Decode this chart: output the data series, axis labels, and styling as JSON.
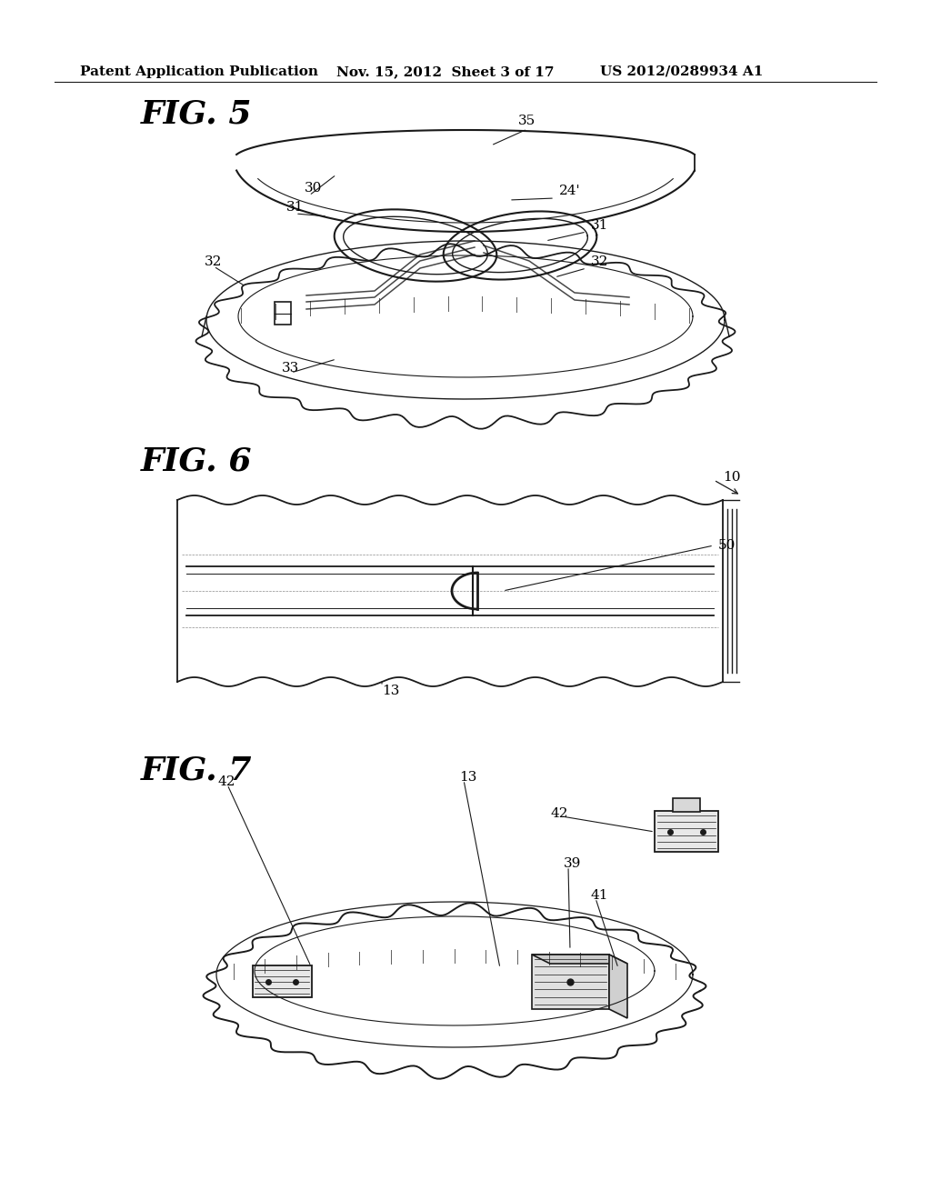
{
  "header_left": "Patent Application Publication",
  "header_mid": "Nov. 15, 2012  Sheet 3 of 17",
  "header_right": "US 2012/0289934 A1",
  "background_color": "#ffffff",
  "fig_labels": [
    "FIG. 5",
    "FIG. 6",
    "FIG. 7"
  ],
  "line_color": "#1a1a1a",
  "text_color": "#000000",
  "header_font_size": 11,
  "fig_label_font_size": 26,
  "ref_num_font_size": 11
}
